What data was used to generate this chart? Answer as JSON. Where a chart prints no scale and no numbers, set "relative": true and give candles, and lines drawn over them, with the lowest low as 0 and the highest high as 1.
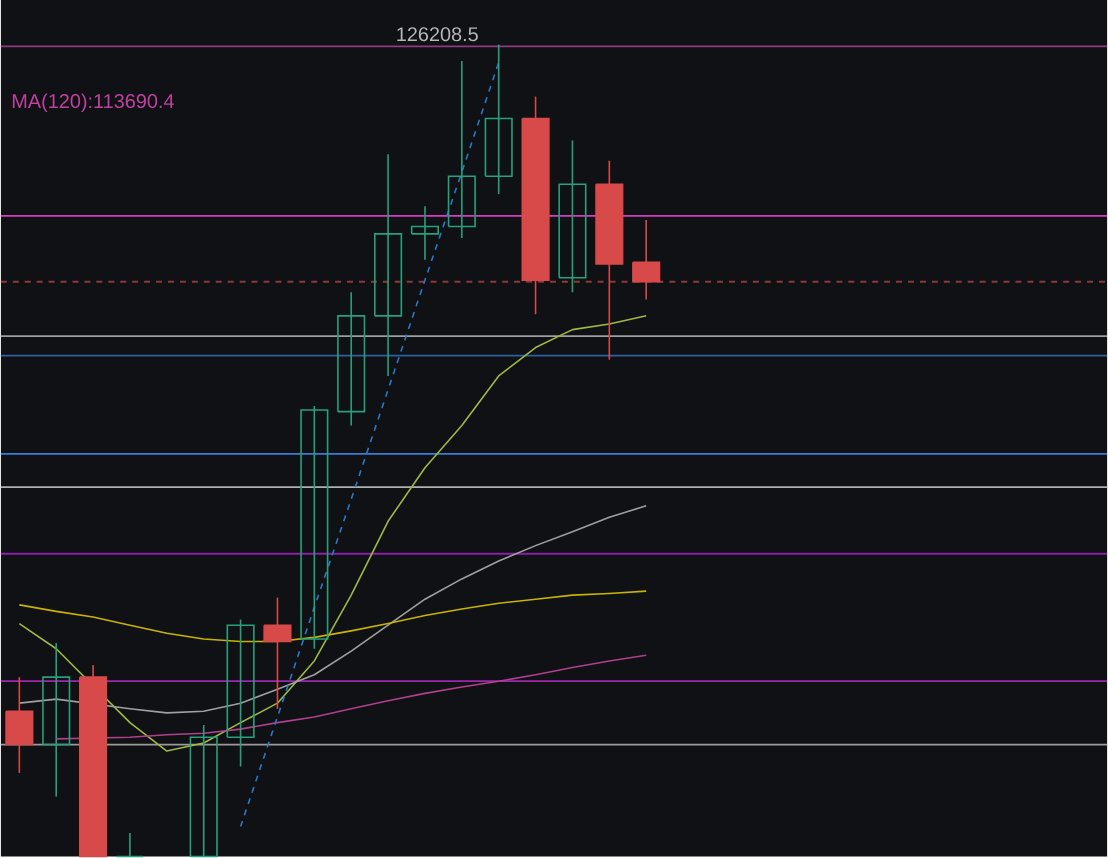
{
  "chart_data": {
    "type": "candlestick",
    "relative": true,
    "categories": [
      null,
      null,
      null,
      null,
      null,
      null,
      null,
      null,
      null,
      null,
      null,
      null,
      null,
      null,
      null,
      null,
      null,
      null,
      null,
      null,
      null,
      null,
      null,
      null,
      null,
      null,
      null,
      null,
      null,
      null
    ],
    "ohlc": [
      [
        0.179,
        0.221,
        0.103,
        0.138
      ],
      [
        0.138,
        0.263,
        0.074,
        0.221
      ],
      [
        0.221,
        0.236,
        0,
        0
      ],
      [
        0,
        0.029,
        0,
        0
      ],
      null,
      [
        0,
        0.162,
        0,
        0.147
      ],
      [
        0.147,
        0.292,
        0.111,
        0.285
      ],
      [
        0.285,
        0.319,
        0.182,
        0.265
      ],
      [
        0.268,
        0.555,
        0.256,
        0.55
      ],
      [
        0.548,
        0.695,
        0.531,
        0.666
      ],
      [
        0.666,
        0.865,
        0.592,
        0.767
      ],
      [
        0.767,
        0.801,
        0.735,
        0.776
      ],
      [
        0.776,
        0.98,
        0.762,
        0.838
      ],
      [
        0.838,
        1,
        0.816,
        0.909
      ],
      [
        0.909,
        0.936,
        0.668,
        0.71
      ],
      [
        0.713,
        0.882,
        0.695,
        0.828
      ],
      [
        0.828,
        0.857,
        0.612,
        0.73
      ],
      [
        0.732,
        0.784,
        0.686,
        0.708
      ],
      null,
      null,
      null,
      null,
      null,
      null,
      null,
      null,
      null,
      null,
      null,
      null
    ],
    "colors": [
      "#d84a4a",
      "#26a17b",
      "#d84a4a",
      "#26a17b",
      null,
      "#26a17b",
      "#26a17b",
      "#d84a4a",
      "#26a17b",
      "#26a17b",
      "#26a17b",
      "#26a17b",
      "#26a17b",
      "#26a17b",
      "#d84a4a",
      "#26a17b",
      "#d84a4a",
      "#d84a4a",
      null,
      null,
      null,
      null,
      null,
      null,
      null,
      null,
      null,
      null,
      null,
      null
    ],
    "series": [
      {
        "type": "line",
        "color": "#9cb946",
        "values": [
          0.287,
          0.256,
          null,
          0.165,
          0.13,
          0.14,
          0.165,
          0.189,
          0.241,
          0.322,
          0.413,
          0.479,
          0.531,
          0.592,
          0.627,
          0.649,
          0.656,
          0.666,
          null,
          null,
          null,
          null,
          null,
          null,
          null,
          null,
          null,
          null,
          null,
          null
        ]
      },
      {
        "type": "line",
        "color": "#a0a0a0",
        "values": [
          0.189,
          0.194,
          null,
          0.182,
          0.177,
          0.179,
          0.189,
          0.206,
          0.224,
          0.253,
          0.285,
          0.317,
          0.342,
          0.364,
          0.383,
          0.4,
          0.418,
          0.432,
          null,
          null,
          null,
          null,
          null,
          null,
          null,
          null,
          null,
          null,
          null,
          null
        ]
      },
      {
        "type": "line",
        "color": "#c8b400",
        "values": [
          0.31,
          0.302,
          0.295,
          0.285,
          0.275,
          0.268,
          0.265,
          0.265,
          0.27,
          0.278,
          0.287,
          0.297,
          0.305,
          0.312,
          0.317,
          0.322,
          0.324,
          0.327,
          null,
          null,
          null,
          null,
          null,
          null,
          null,
          null,
          null,
          null,
          null,
          null
        ]
      },
      {
        "type": "line",
        "color": "#b0408e",
        "values": [
          null,
          0.145,
          null,
          0.147,
          0.15,
          0.152,
          0.157,
          0.165,
          0.172,
          0.182,
          0.192,
          0.201,
          0.209,
          0.216,
          0.224,
          0.233,
          0.241,
          0.248,
          null,
          null,
          null,
          null,
          null,
          null,
          null,
          null,
          null,
          null,
          null,
          null
        ]
      },
      {
        "type": "line",
        "color": "#2979c9",
        "line_style": "dashed",
        "values": [
          null,
          null,
          null,
          null,
          null,
          null,
          0.037,
          0.172,
          0.307,
          0.44,
          0.575,
          0.71,
          0.843,
          0.978,
          null,
          null,
          null,
          null,
          null,
          null,
          null,
          null,
          null,
          null,
          null,
          null,
          null,
          null,
          null,
          null
        ]
      }
    ],
    "ref_lines": [
      {
        "axis": "y",
        "value": 0.998,
        "color": "#8e3a80"
      },
      {
        "axis": "y",
        "value": 0.789,
        "color": "#d63cc4"
      },
      {
        "axis": "y",
        "value": 0.708,
        "color": "#8b3a3a",
        "line_style": "dashed"
      },
      {
        "axis": "y",
        "value": 0.641,
        "color": "#9e9e9e"
      },
      {
        "axis": "y",
        "value": 0.617,
        "color": "#2e5fa0"
      },
      {
        "axis": "y",
        "value": 0.496,
        "color": "#3a7bd5"
      },
      {
        "axis": "y",
        "value": 0.455,
        "color": "#b0b0b0"
      },
      {
        "axis": "y",
        "value": 0.373,
        "color": "#8a1fa8"
      },
      {
        "axis": "y",
        "value": 0.216,
        "color": "#9c27b0"
      },
      {
        "axis": "y",
        "value": 0.138,
        "color": "#9a9a9a"
      }
    ],
    "annotations": [
      {
        "text": "126208.5",
        "y": 1
      },
      "MA(120):113690.4"
    ]
  }
}
